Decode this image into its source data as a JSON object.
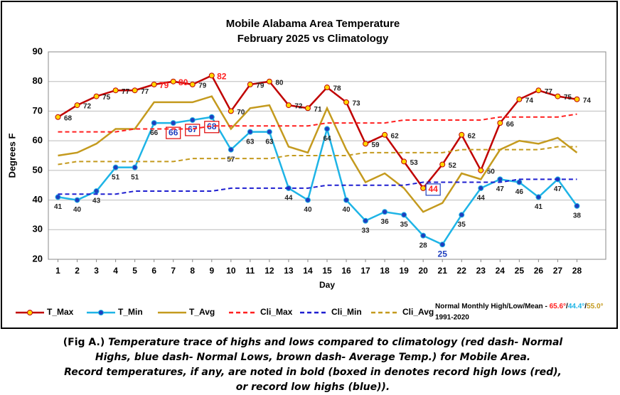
{
  "chart_data": {
    "type": "line",
    "title": "Mobile Alabama Area Temperature",
    "subtitle": "February 2025 vs Climatology",
    "x_label": "Day",
    "y_label": "Degrees F",
    "x": [
      1,
      2,
      3,
      4,
      5,
      6,
      7,
      8,
      9,
      10,
      11,
      12,
      13,
      14,
      15,
      16,
      17,
      18,
      19,
      20,
      21,
      22,
      23,
      24,
      25,
      26,
      27,
      28
    ],
    "xlim": [
      0.5,
      29.5
    ],
    "xticks": [
      1,
      2,
      3,
      4,
      5,
      6,
      7,
      8,
      9,
      10,
      11,
      12,
      13,
      14,
      15,
      16,
      17,
      18,
      19,
      20,
      21,
      22,
      23,
      24,
      25,
      26,
      27,
      28
    ],
    "ylim": [
      20,
      90
    ],
    "yticks": [
      20,
      30,
      40,
      50,
      60,
      70,
      80,
      90
    ],
    "grid": true,
    "series": [
      {
        "name": "T_Max",
        "color": "#c00000",
        "marker": "#ffd700",
        "dash": false,
        "labels": "right",
        "values": [
          68,
          72,
          75,
          77,
          77,
          79,
          80,
          79,
          82,
          70,
          79,
          80,
          72,
          71,
          78,
          73,
          59,
          62,
          53,
          44,
          52,
          62,
          50,
          66,
          74,
          77,
          75,
          74
        ],
        "highlights": [
          {
            "index": 5,
            "color": "#ff2020"
          },
          {
            "index": 6,
            "color": "#ff2020"
          },
          {
            "index": 8,
            "color": "#ff2020"
          },
          {
            "index": 19,
            "color": "#ff2020",
            "box": "#1f3fbf"
          }
        ]
      },
      {
        "name": "T_Min",
        "color": "#1eb4e6",
        "marker": "#1f3fbf",
        "dash": false,
        "labels": "below",
        "values": [
          41,
          40,
          43,
          51,
          51,
          66,
          66,
          67,
          68,
          57,
          63,
          63,
          44,
          40,
          64,
          40,
          33,
          36,
          35,
          28,
          25,
          35,
          44,
          47,
          46,
          41,
          47,
          38
        ],
        "highlights": [
          {
            "index": 6,
            "color": "#1f3fbf",
            "box": "#e00000"
          },
          {
            "index": 7,
            "color": "#1f3fbf",
            "box": "#e00000"
          },
          {
            "index": 8,
            "color": "#1f3fbf",
            "box": "#e00000"
          },
          {
            "index": 20,
            "color": "#1f3fbf"
          }
        ]
      },
      {
        "name": "T_Avg",
        "color": "#c49a1e",
        "dash": false,
        "values": [
          55,
          56,
          59,
          64,
          64,
          73,
          73,
          73,
          75,
          64,
          71,
          72,
          58,
          56,
          71,
          57,
          46,
          49,
          44,
          36,
          39,
          49,
          47,
          57,
          60,
          59,
          61,
          56
        ]
      },
      {
        "name": "Cli_Max",
        "color": "#ff2020",
        "dash": true,
        "values": [
          63,
          63,
          63,
          63,
          64,
          64,
          64,
          64,
          65,
          65,
          65,
          65,
          65,
          65,
          66,
          66,
          66,
          66,
          67,
          67,
          67,
          67,
          67,
          68,
          68,
          68,
          68,
          69
        ]
      },
      {
        "name": "Cli_Min",
        "color": "#1f1fd0",
        "dash": true,
        "values": [
          42,
          42,
          42,
          42,
          43,
          43,
          43,
          43,
          43,
          44,
          44,
          44,
          44,
          44,
          45,
          45,
          45,
          45,
          45,
          46,
          46,
          46,
          46,
          46,
          47,
          47,
          47,
          47
        ]
      },
      {
        "name": "Cli_Avg",
        "color": "#c49a1e",
        "dash": true,
        "values": [
          52,
          53,
          53,
          53,
          53,
          53,
          53,
          54,
          54,
          54,
          54,
          54,
          55,
          55,
          55,
          55,
          56,
          56,
          56,
          56,
          56,
          57,
          57,
          57,
          57,
          57,
          58,
          58
        ]
      }
    ],
    "normals": {
      "label": "Normal Monthly High/Low/Mean - ",
      "high": "65.6°",
      "sep1": "/",
      "low": "44.4°",
      "sep2": "/",
      "mean": "55.0°",
      "period": "1991-2020"
    },
    "caption": {
      "lead": "(Fig A.)",
      "lines": [
        " Temperature trace of highs and lows compared to climatology (red dash- Normal",
        "Highs, blue dash- Normal Lows, brown dash- Average Temp.) for Mobile Area.",
        "Record temperatures, if any, are noted in bold (boxed in denotes record high lows (red),",
        "or record low highs (blue))."
      ]
    }
  }
}
